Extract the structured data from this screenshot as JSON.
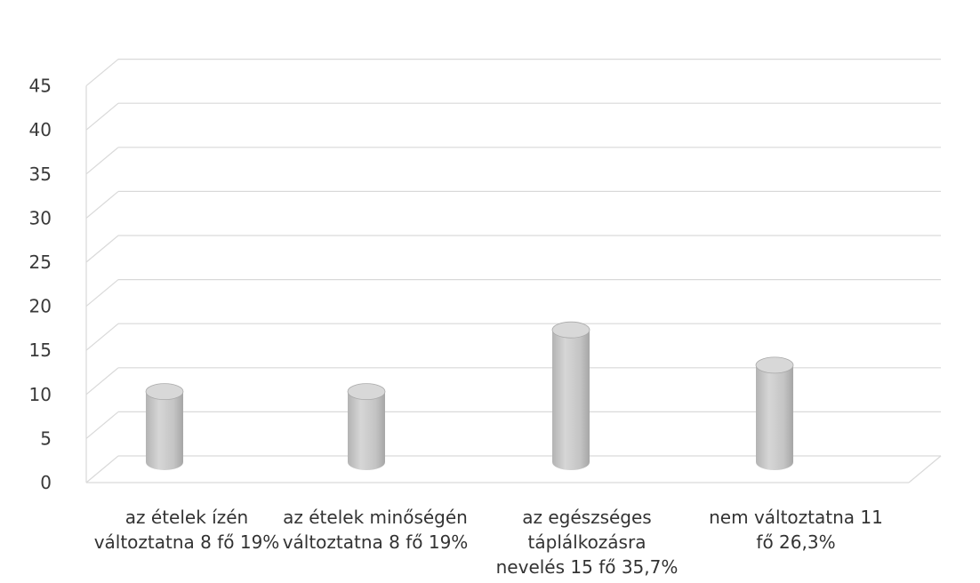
{
  "chart_data": {
    "type": "bar",
    "categories": [
      "az ételek ízén változtatna 8 fő 19%",
      "az ételek minőségén változtatna 8 fő 19%",
      "az egészséges táplálkozásra nevelés 15 fő 35,7%",
      "nem változtatna 11 fő 26,3%"
    ],
    "values": [
      8,
      8,
      15,
      11
    ],
    "ylim": [
      0,
      45
    ],
    "yticks": [
      "0",
      "5",
      "10",
      "15",
      "20",
      "25",
      "30",
      "35",
      "40",
      "45"
    ],
    "grid": true,
    "legend": "none",
    "bar_style": "3d-cylinder",
    "colors": {
      "bar": "#c9c9c9",
      "bar_dark": "#a9a9a9",
      "bar_top": "#d8d8d8",
      "grid": "#d9d9d9",
      "axis_text": "#3a3a3a"
    }
  }
}
